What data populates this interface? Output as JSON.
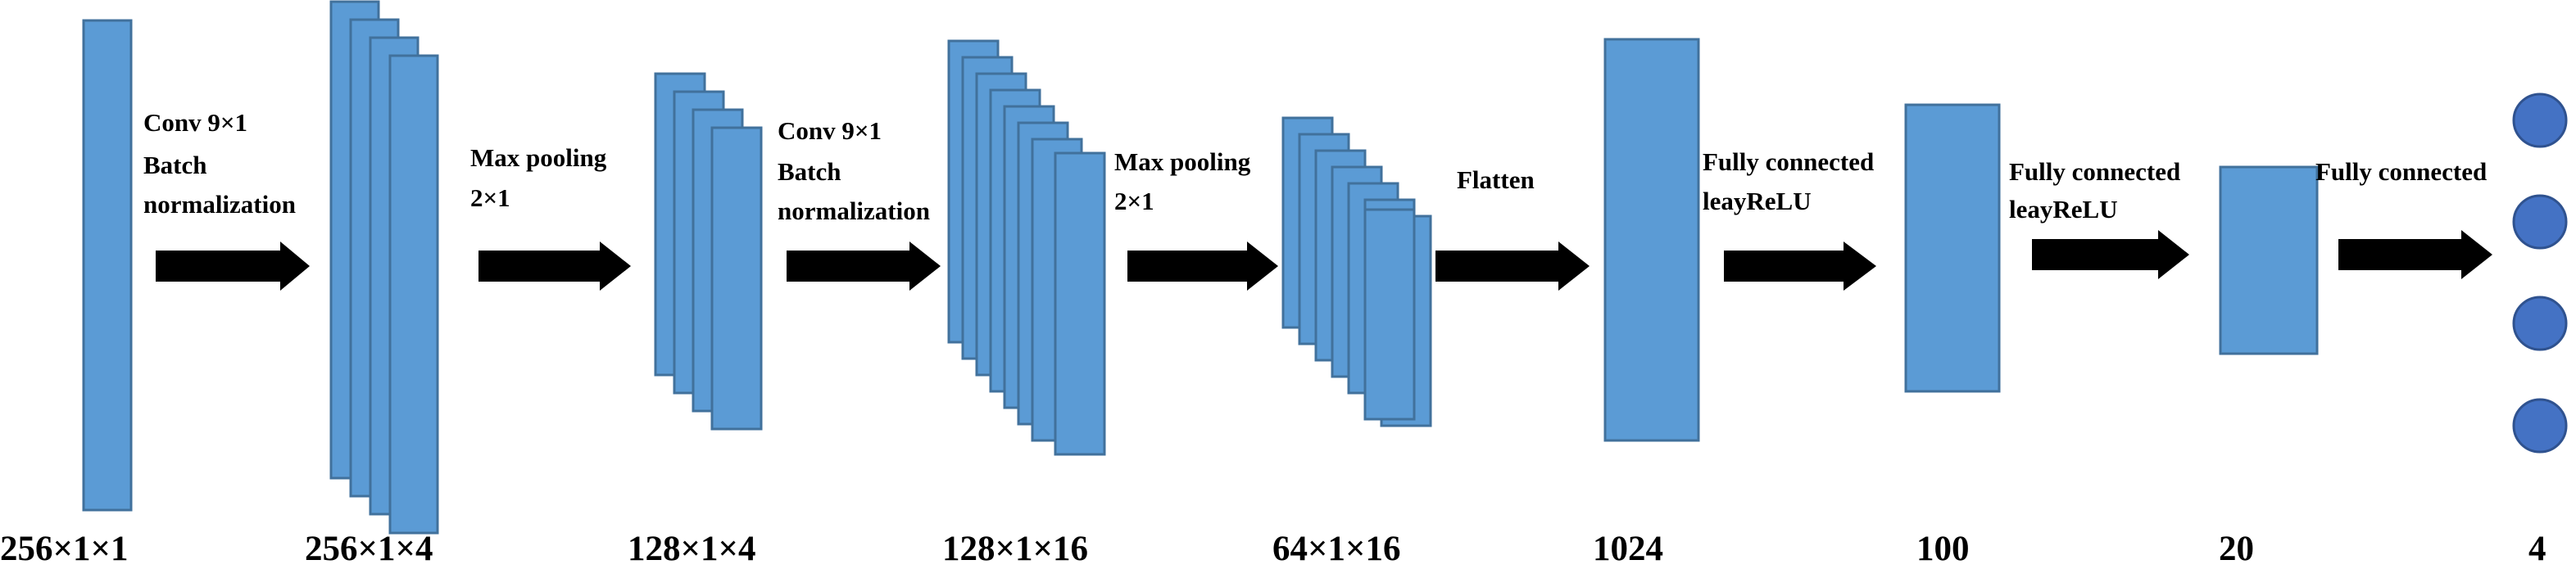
{
  "stages": [
    {
      "dimension": "256×1×1"
    },
    {
      "dimension": "256×1×4"
    },
    {
      "dimension": "128×1×4"
    },
    {
      "dimension": "128×1×16"
    },
    {
      "dimension": "64×1×16"
    },
    {
      "dimension": "1024"
    },
    {
      "dimension": "100"
    },
    {
      "dimension": "20"
    },
    {
      "dimension": "4"
    }
  ],
  "operations": [
    {
      "lines": [
        "Conv 9×1",
        "Batch",
        "normalization"
      ]
    },
    {
      "lines": [
        "Max pooling",
        "2×1"
      ]
    },
    {
      "lines": [
        "Conv 9×1",
        "Batch",
        "normalization"
      ]
    },
    {
      "lines": [
        "Max pooling",
        "2×1"
      ]
    },
    {
      "lines": [
        "Flatten"
      ]
    },
    {
      "lines": [
        "Fully connected",
        "leayReLU"
      ]
    },
    {
      "lines": [
        "Fully connected",
        "leayReLU"
      ]
    },
    {
      "lines": [
        "Fully connected"
      ]
    }
  ],
  "colors": {
    "block_fill": "#5b9bd5",
    "block_stroke": "#41719c",
    "node_fill": "#4472c4",
    "arrow": "#000000"
  }
}
